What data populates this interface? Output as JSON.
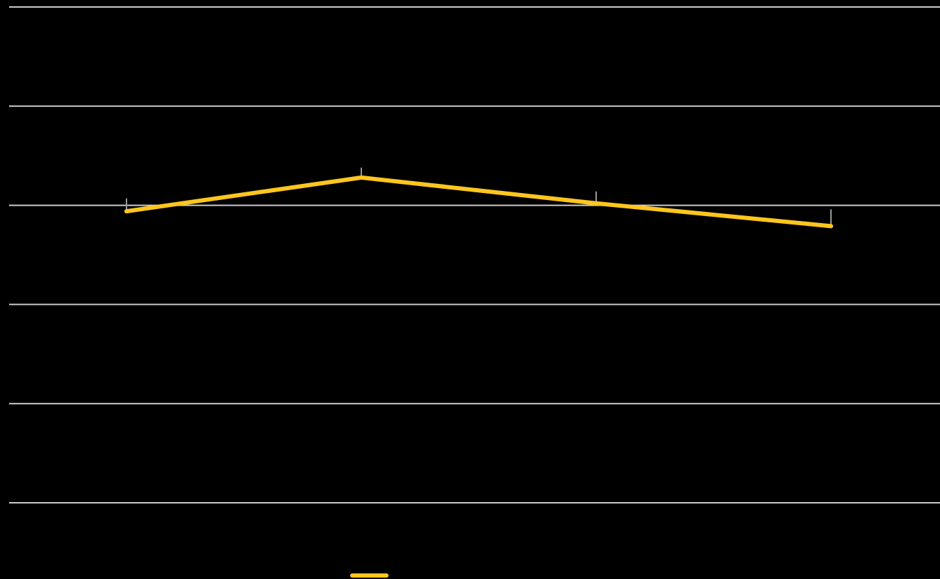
{
  "chart_data": {
    "type": "line",
    "title": "",
    "xlabel": "",
    "ylabel": "",
    "categories": [
      "",
      "",
      "",
      ""
    ],
    "series": [
      {
        "values": [
          3.94,
          4.28,
          4.02,
          3.79
        ]
      }
    ],
    "error_bars": [
      0.13,
      0.1,
      0.12,
      0.17
    ],
    "ylim": [
      1,
      6
    ],
    "gridlines": [
      1,
      2,
      3,
      4,
      5,
      6
    ],
    "grid": true,
    "legend": "bottom-left",
    "colors": {
      "background": "#000000",
      "grid": "#cccccc",
      "series": "#ffc61e",
      "error_bar": "#999999"
    }
  }
}
